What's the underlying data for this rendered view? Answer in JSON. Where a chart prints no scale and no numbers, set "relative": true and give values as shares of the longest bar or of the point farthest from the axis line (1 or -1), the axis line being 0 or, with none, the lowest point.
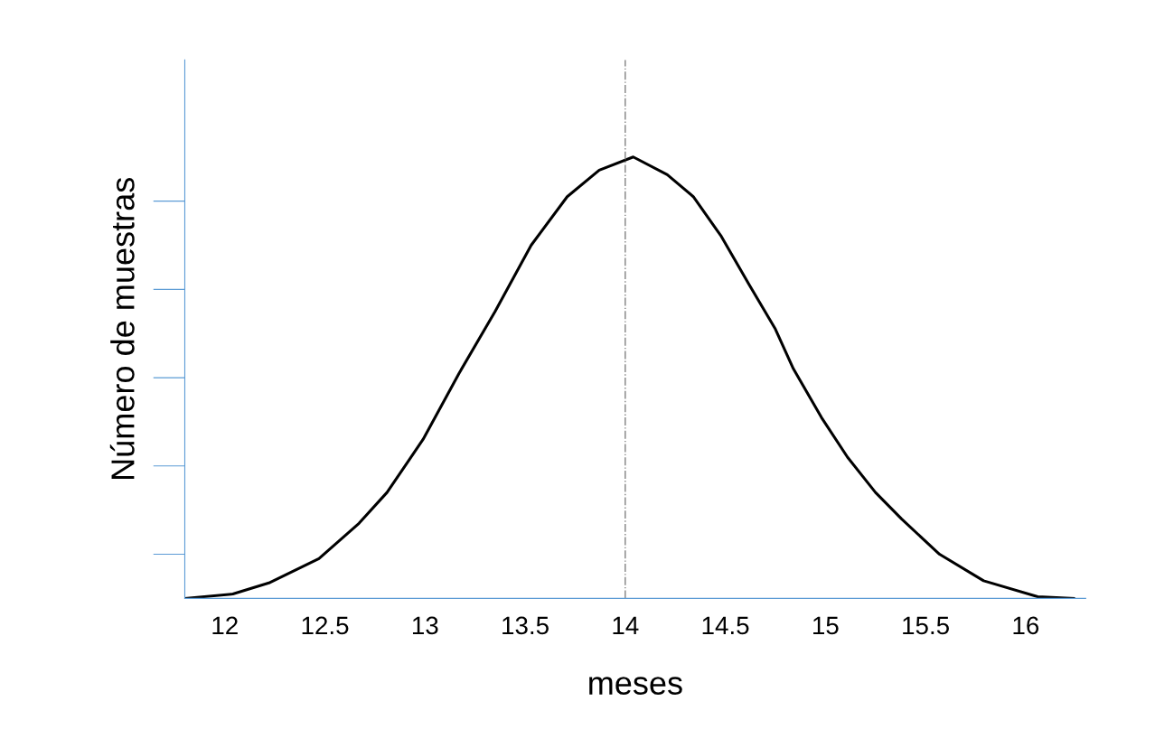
{
  "chart_data": {
    "type": "line",
    "relative": true,
    "xlabel": "meses",
    "ylabel": "Número de muestras",
    "x": [
      11.8,
      12.04,
      12.22,
      12.47,
      12.67,
      12.81,
      12.99,
      13.17,
      13.35,
      13.53,
      13.71,
      13.87,
      14.04,
      14.21,
      14.34,
      14.48,
      14.62,
      14.75,
      14.84,
      14.98,
      15.11,
      15.25,
      15.38,
      15.57,
      15.79,
      16.06,
      16.24
    ],
    "series": [
      {
        "color": "#000000",
        "values": [
          0,
          0.01,
          0.035,
          0.09,
          0.17,
          0.24,
          0.36,
          0.51,
          0.65,
          0.8,
          0.91,
          0.97,
          1,
          0.96,
          0.91,
          0.82,
          0.71,
          0.61,
          0.52,
          0.41,
          0.32,
          0.24,
          0.18,
          0.1,
          0.04,
          0.004,
          0
        ]
      }
    ],
    "xlim": [
      11.8,
      16.3
    ],
    "xticks": [
      12,
      {
        "value": 12.5,
        "label": "12.5"
      },
      13,
      {
        "value": 13.5,
        "label": "13.5"
      },
      14,
      {
        "value": 14.5,
        "label": "14.5"
      },
      15,
      {
        "value": 15.5,
        "label": "15.5"
      },
      16
    ],
    "ref_lines": [
      {
        "axis": "x",
        "value": 14,
        "color": "#808080",
        "line_style": "dashdot"
      }
    ],
    "tick_labels": "x",
    "grid": false,
    "legend": false,
    "marker": "none",
    "line_style": "solid"
  }
}
